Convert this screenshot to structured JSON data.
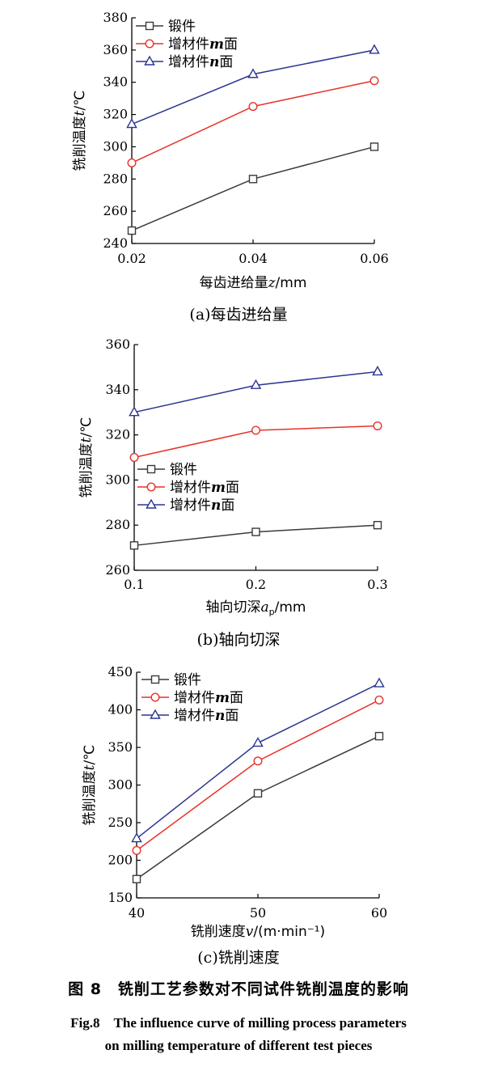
{
  "chart_data": [
    {
      "type": "line",
      "x": [
        "0.02",
        "0.04",
        "0.06"
      ],
      "ylim": [
        240,
        380
      ],
      "yticks": [
        240,
        260,
        280,
        300,
        320,
        340,
        360,
        380
      ],
      "xlabel": "每齿进给量z/mm",
      "ylabel": "铣削温度t/℃",
      "caption": "(a)每齿进给量",
      "legend_position": "top-left",
      "series": [
        {
          "name": "锻件",
          "marker": "square",
          "color": "#3a3a3a",
          "values": [
            248,
            280,
            300
          ]
        },
        {
          "name": "增材件m面",
          "marker": "circle",
          "color": "#e8312a",
          "values": [
            290,
            325,
            341
          ]
        },
        {
          "name": "增材件n面",
          "marker": "triangle",
          "color": "#2b3590",
          "values": [
            314,
            345,
            360
          ]
        }
      ]
    },
    {
      "type": "line",
      "x": [
        "0.1",
        "0.2",
        "0.3"
      ],
      "ylim": [
        260,
        360
      ],
      "yticks": [
        260,
        280,
        300,
        320,
        340,
        360
      ],
      "xlabel": "轴向切深a_p/mm",
      "ylabel": "铣削温度t/℃",
      "caption": "(b)轴向切深",
      "legend_position": "center-left",
      "series": [
        {
          "name": "锻件",
          "marker": "square",
          "color": "#3a3a3a",
          "values": [
            271,
            277,
            280
          ]
        },
        {
          "name": "增材件m面",
          "marker": "circle",
          "color": "#e8312a",
          "values": [
            310,
            322,
            324
          ]
        },
        {
          "name": "增材件n面",
          "marker": "triangle",
          "color": "#2b3590",
          "values": [
            330,
            342,
            348
          ]
        }
      ]
    },
    {
      "type": "line",
      "x": [
        "40",
        "50",
        "60"
      ],
      "ylim": [
        150,
        450
      ],
      "yticks": [
        150,
        200,
        250,
        300,
        350,
        400,
        450
      ],
      "xlabel": "铣削速度v/(m·min⁻¹)",
      "ylabel": "铣削温度t/℃",
      "caption": "(c)铣削速度",
      "legend_position": "top-left",
      "series": [
        {
          "name": "锻件",
          "marker": "square",
          "color": "#3a3a3a",
          "values": [
            175,
            289,
            365
          ]
        },
        {
          "name": "增材件m面",
          "marker": "circle",
          "color": "#e8312a",
          "values": [
            213,
            332,
            413
          ]
        },
        {
          "name": "增材件n面",
          "marker": "triangle",
          "color": "#2b3590",
          "values": [
            229,
            356,
            435
          ]
        }
      ]
    }
  ],
  "figure": {
    "caption_cn": "图 8　铣削工艺参数对不同试件铣削温度的影响",
    "caption_en_1": "Fig.8　The influence curve of milling process parameters",
    "caption_en_2": "on milling temperature of different test pieces"
  }
}
